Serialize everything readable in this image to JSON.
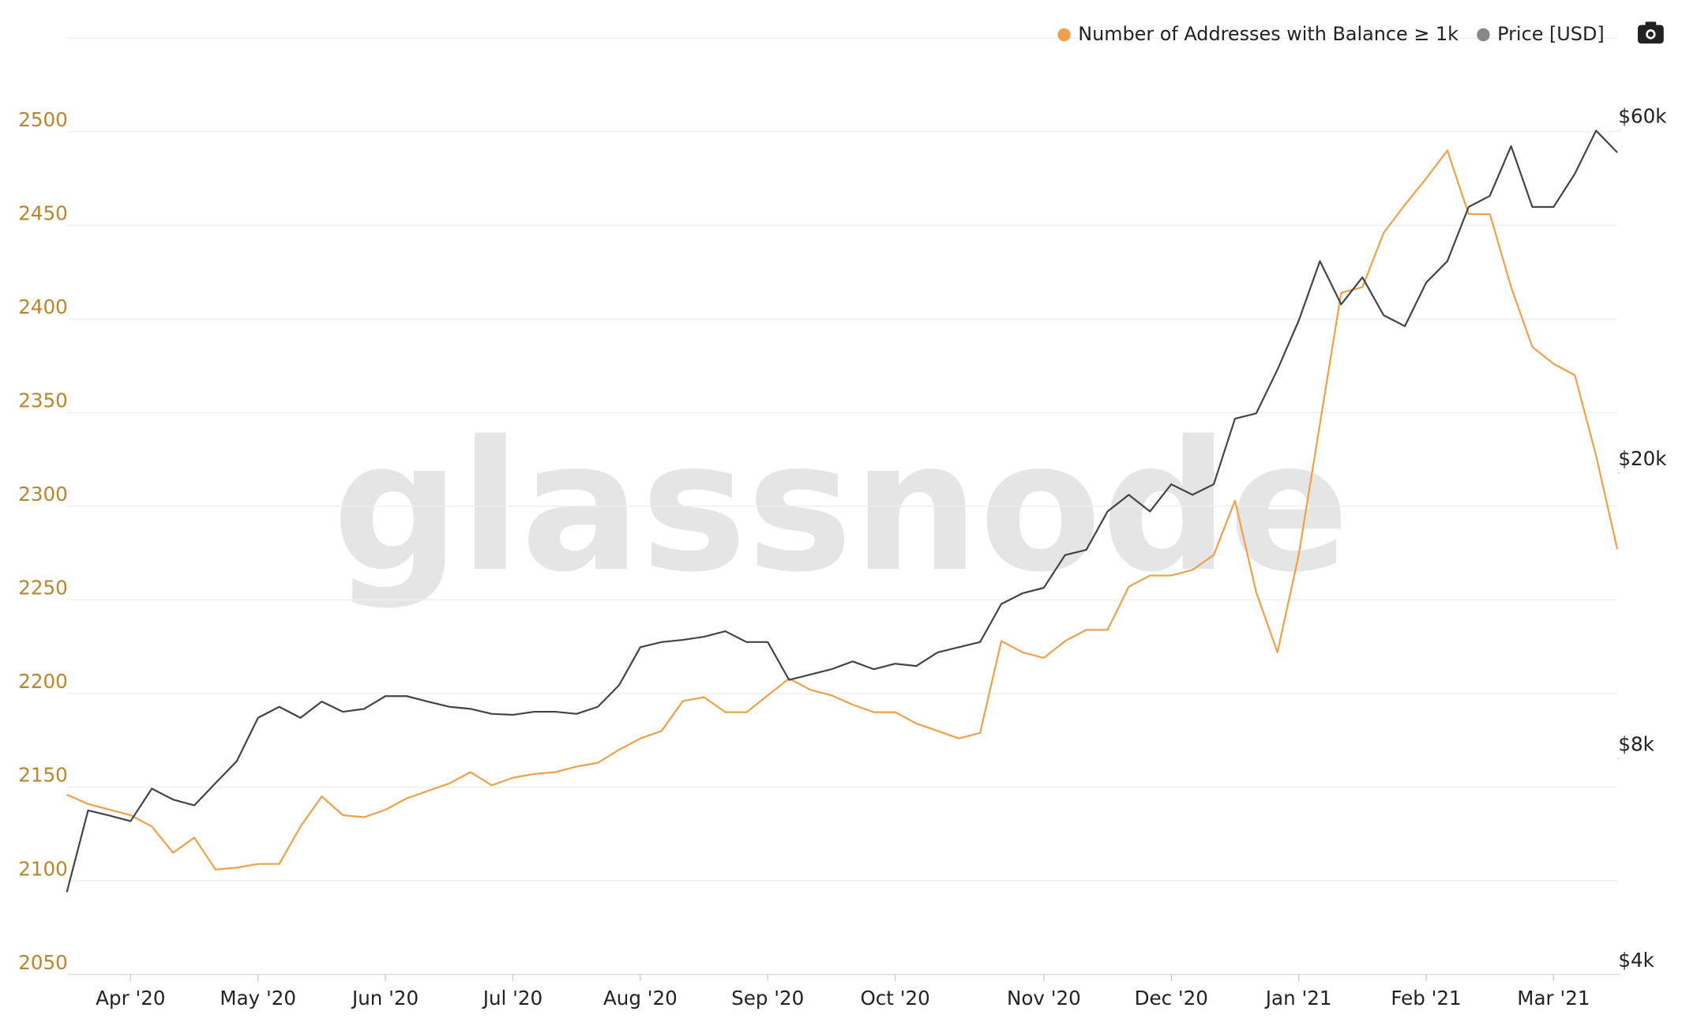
{
  "chart_data": {
    "type": "line",
    "watermark": "glassnode",
    "legend": "top-right",
    "grid": true,
    "categories": [
      null,
      null,
      null,
      "Apr '20",
      null,
      null,
      null,
      null,
      null,
      "May '20",
      null,
      null,
      null,
      null,
      null,
      "Jun '20",
      null,
      null,
      null,
      null,
      null,
      "Jul '20",
      null,
      null,
      null,
      null,
      null,
      "Aug '20",
      null,
      null,
      null,
      null,
      null,
      "Sep '20",
      null,
      null,
      null,
      null,
      null,
      "Oct '20",
      null,
      null,
      null,
      null,
      null,
      null,
      "Nov '20",
      null,
      null,
      null,
      null,
      null,
      "Dec '20",
      null,
      null,
      null,
      null,
      null,
      "Jan '21",
      null,
      null,
      null,
      null,
      null,
      "Feb '21",
      null,
      null,
      null,
      null,
      null,
      "Mar '21",
      null,
      null,
      null
    ],
    "series": [
      {
        "name": "Number of Addresses with Balance ≥ 1k",
        "color": "#f0a04b",
        "axis": "y",
        "values": [
          2146,
          2141,
          2138,
          2135,
          2129,
          2115,
          2123,
          2106,
          2107,
          2109,
          2109,
          2129,
          2145,
          2135,
          2134,
          2138,
          2144,
          2148,
          2152,
          2158,
          2151,
          2155,
          2157,
          2158,
          2161,
          2163,
          2170,
          2176,
          2180,
          2196,
          2198,
          2190,
          2190,
          2199,
          2208,
          2202,
          2199,
          2194,
          2190,
          2190,
          2184,
          2180,
          2176,
          2179,
          2228,
          2222,
          2219,
          2228,
          2234,
          2234,
          2257,
          2263,
          2263,
          2266,
          2274,
          2303,
          2254,
          2222,
          2274,
          2344,
          2414,
          2417,
          2446,
          2461,
          2475,
          2490,
          2456,
          2456,
          2417,
          2385,
          2376,
          2370,
          2327,
          2277
        ]
      },
      {
        "name": "Price [USD]",
        "color": "#444444",
        "axis": "y2",
        "values": [
          5210,
          6770,
          6660,
          6540,
          7260,
          7010,
          6880,
          7390,
          7930,
          9110,
          9440,
          9110,
          9600,
          9290,
          9380,
          9770,
          9770,
          9600,
          9440,
          9380,
          9230,
          9200,
          9290,
          9290,
          9230,
          9440,
          10120,
          11430,
          11620,
          11700,
          11820,
          12030,
          11620,
          11620,
          10290,
          10470,
          10650,
          10920,
          10650,
          10840,
          10760,
          11240,
          11430,
          11620,
          13130,
          13590,
          13830,
          15360,
          15620,
          17670,
          18640,
          17670,
          19280,
          18640,
          19280,
          23790,
          24200,
          27850,
          32580,
          39450,
          34330,
          37450,
          33160,
          32020,
          36820,
          39450,
          46940,
          48640,
          57070,
          46940,
          46940,
          52200,
          59970,
          55900
        ]
      }
    ],
    "ylim": [
      2050,
      2550
    ],
    "yticks": [
      2050,
      2100,
      2150,
      2200,
      2250,
      2300,
      2350,
      2400,
      2450,
      2500
    ],
    "y2lim": [
      4000,
      80700
    ],
    "y2log": true,
    "y2ticks": [
      {
        "value": 4000,
        "label": "$4k"
      },
      {
        "value": 8000,
        "label": "$8k"
      },
      {
        "value": 20000,
        "label": "$20k"
      },
      {
        "value": 60000,
        "label": "$60k"
      }
    ],
    "ytick_color": "#b8862e"
  }
}
